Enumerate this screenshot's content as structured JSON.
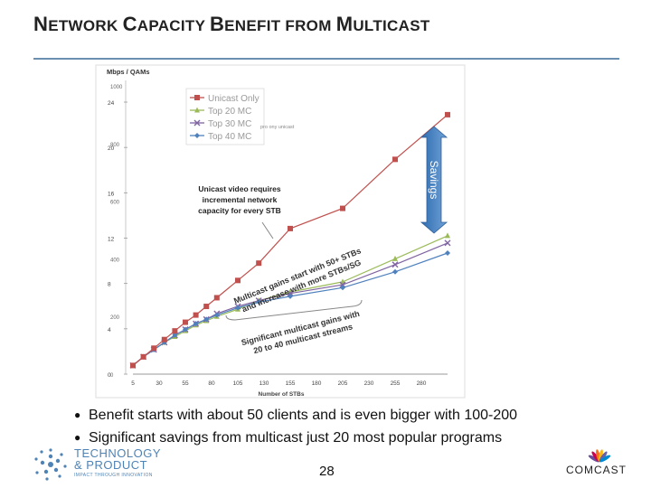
{
  "slide": {
    "title_parts": [
      {
        "big": "N",
        "small": "ETWORK "
      },
      {
        "big": "C",
        "small": "APACITY "
      },
      {
        "big": "B",
        "small": "ENEFIT FROM "
      },
      {
        "big": "M",
        "small": "ULTICAST"
      }
    ],
    "bullets": [
      "Benefit starts with about 50 clients and is even bigger with 100-200",
      "Significant savings from multicast just 20 most popular programs"
    ],
    "page_number": "28",
    "logos": {
      "left_line1": "TECHNOLOGY",
      "left_line2": "& PRODUCT",
      "left_tagline": "IMPACT THROUGH INNOVATION",
      "right": "COMCAST"
    },
    "colors": {
      "title_rule": "#6b8fb0",
      "savings_arrow": "#4f81bd"
    }
  },
  "chart_data": {
    "type": "line",
    "ylabel": "Mbps / QAMs",
    "xlabel": "Number of STBs",
    "x": [
      5,
      15,
      25,
      35,
      45,
      55,
      65,
      75,
      85,
      105,
      125,
      155,
      205,
      255,
      305
    ],
    "xticks": [
      "5",
      "30",
      "55",
      "80",
      "105",
      "130",
      "155",
      "180",
      "205",
      "230",
      "255",
      "280"
    ],
    "y_left_ticks": [
      "0",
      "200",
      "400",
      "600",
      "800",
      "1000"
    ],
    "y_right_ticks": [
      "0",
      "4",
      "8",
      "12",
      "16",
      "20",
      "24"
    ],
    "ylim_left": [
      0,
      1000
    ],
    "series": [
      {
        "name": "Unicast Only",
        "color": "#c0504d",
        "marker": "square",
        "values": [
          30,
          60,
          90,
          120,
          150,
          180,
          205,
          235,
          265,
          325,
          385,
          505,
          575,
          745,
          900
        ]
      },
      {
        "name": "Top 20 MC",
        "color": "#9bbb59",
        "marker": "triangle",
        "values": [
          30,
          60,
          85,
          110,
          130,
          150,
          170,
          185,
          200,
          225,
          255,
          285,
          320,
          400,
          480
        ]
      },
      {
        "name": "Top 30 MC",
        "color": "#8064a2",
        "marker": "x",
        "values": [
          30,
          60,
          85,
          110,
          135,
          155,
          175,
          190,
          210,
          235,
          255,
          280,
          310,
          380,
          455
        ]
      },
      {
        "name": "Top 40 MC",
        "color": "#4f81bd",
        "marker": "diamond",
        "values": [
          30,
          60,
          85,
          110,
          135,
          155,
          175,
          190,
          205,
          230,
          250,
          270,
          300,
          355,
          420
        ]
      }
    ],
    "legend_extra": "pro ony unicast",
    "annotations": {
      "callout": [
        "Unicast video requires",
        "incremental network",
        "capacity for every STB"
      ],
      "gains_line1": "Multicast gains start with 50+ STBs",
      "gains_line2": "and increase with more STBs/SG",
      "significant_line1": "Significant multicast gains with",
      "significant_line2": "20 to 40 multicast streams",
      "savings": "Savings"
    }
  }
}
